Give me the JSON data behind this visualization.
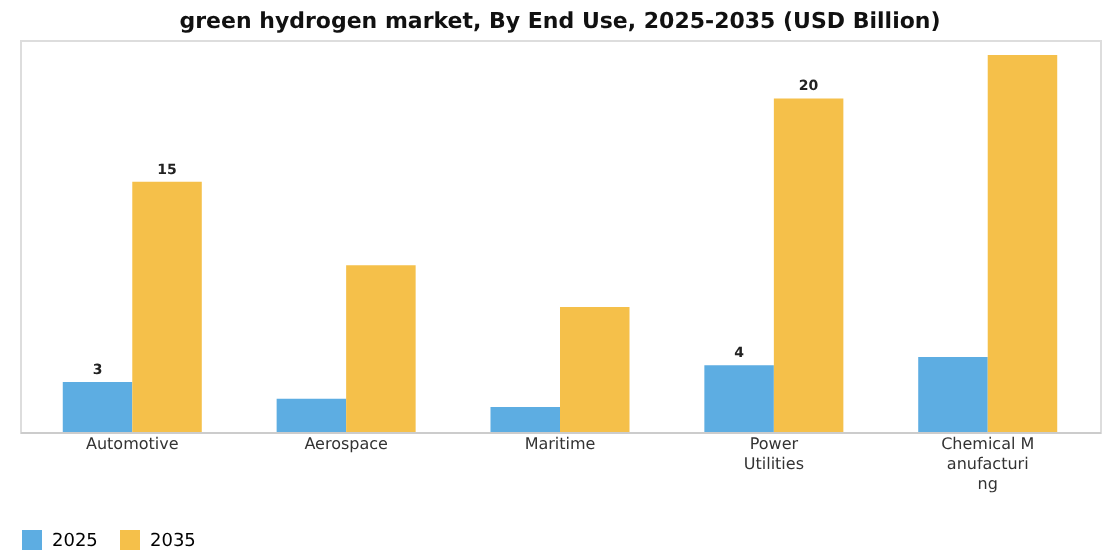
{
  "chart_data": {
    "type": "bar",
    "title": "green hydrogen market, By End Use, 2025-2035 (USD Billion)",
    "categories": [
      "Automotive",
      "Aerospace",
      "Maritime",
      "Power\nUtilities",
      "Chemical M\nanufacturi\nng"
    ],
    "series": [
      {
        "name": "2025",
        "color": "#5dade2",
        "values": [
          3,
          2,
          1.5,
          4,
          4.5
        ],
        "value_labels": [
          "3",
          null,
          null,
          "4",
          null
        ]
      },
      {
        "name": "2035",
        "color": "#f5c04a",
        "values": [
          15,
          10,
          7.5,
          20,
          22.6
        ],
        "value_labels": [
          "15",
          null,
          null,
          "20",
          null
        ]
      }
    ],
    "ylim": [
      0,
      23.5
    ],
    "grid": false,
    "legend": "bottom"
  }
}
